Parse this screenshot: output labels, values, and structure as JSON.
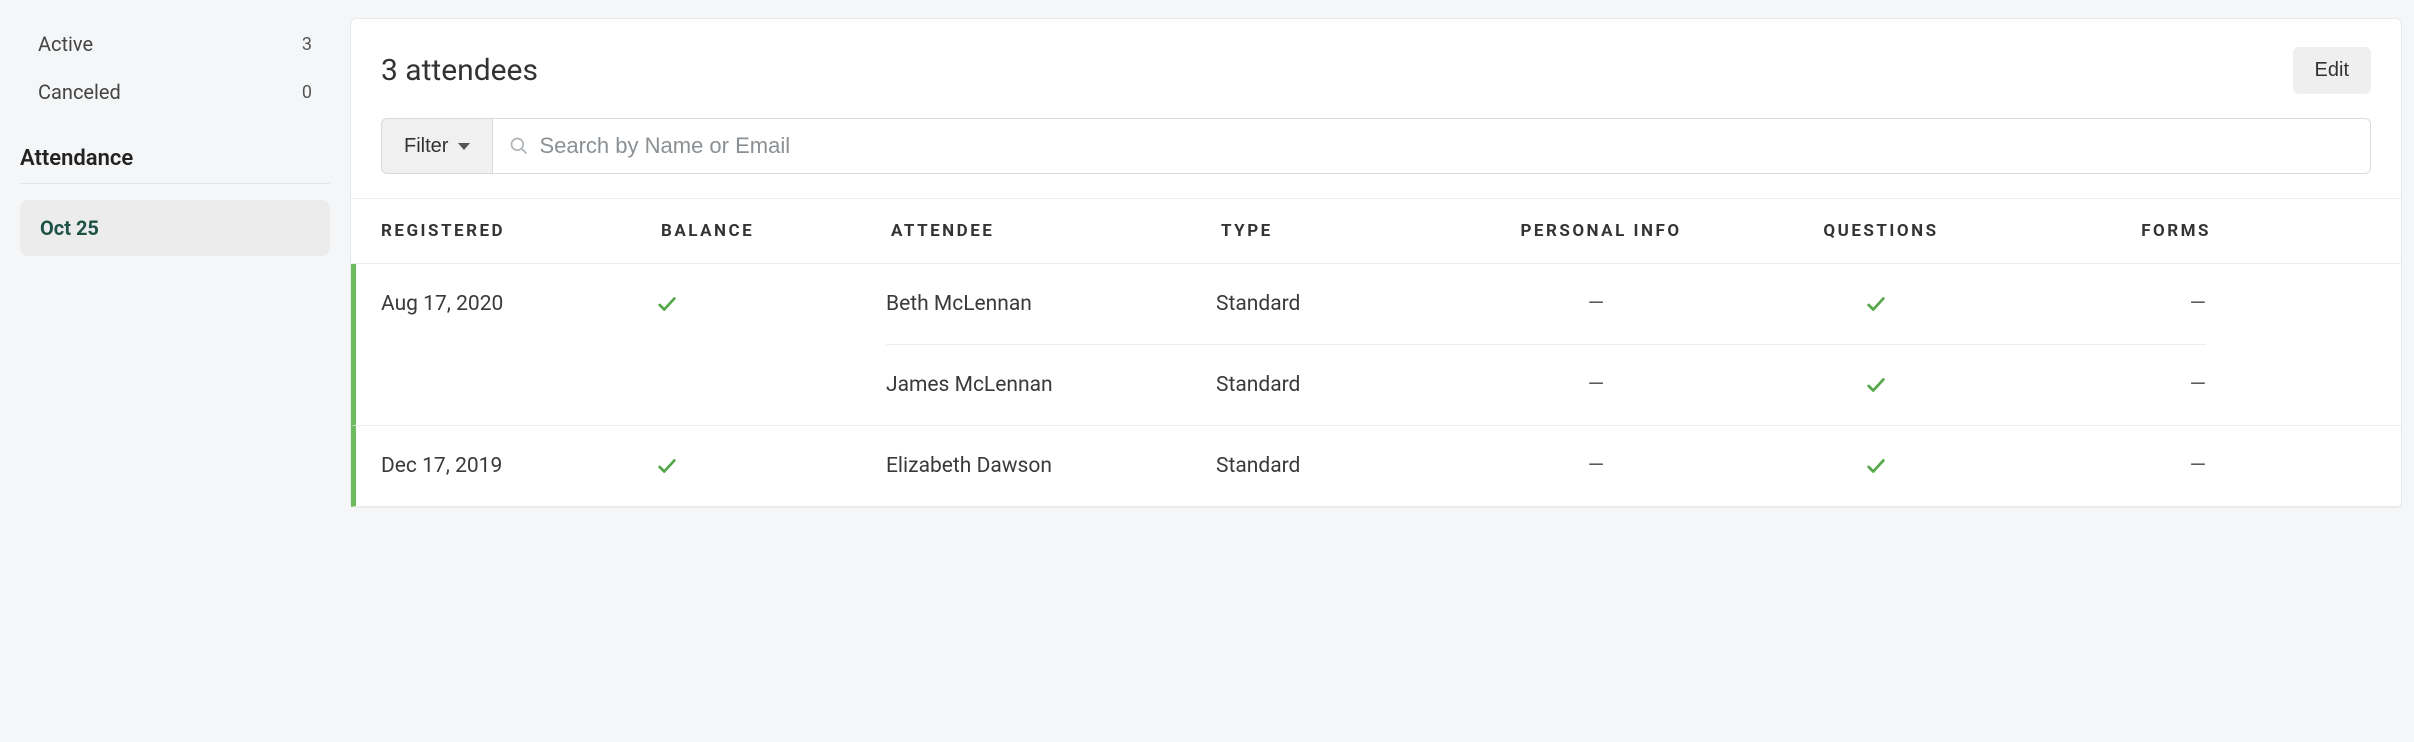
{
  "sidebar": {
    "statuses": [
      {
        "label": "Active",
        "count": "3"
      },
      {
        "label": "Canceled",
        "count": "0"
      }
    ],
    "attendance_label": "Attendance",
    "dates": [
      {
        "label": "Oct 25"
      }
    ]
  },
  "header": {
    "title": "3 attendees",
    "edit_label": "Edit"
  },
  "controls": {
    "filter_label": "Filter",
    "search_placeholder": "Search by Name or Email"
  },
  "table": {
    "columns": {
      "registered": "REGISTERED",
      "balance": "BALANCE",
      "attendee": "ATTENDEE",
      "type": "TYPE",
      "personal_info": "PERSONAL INFO",
      "questions": "QUESTIONS",
      "forms": "FORMS"
    },
    "groups": [
      {
        "registered": "Aug 17, 2020",
        "balance": "check",
        "attendees": [
          {
            "name": "Beth McLennan",
            "type": "Standard",
            "personal_info": "dash",
            "questions": "check",
            "forms": "dash"
          },
          {
            "name": "James McLennan",
            "type": "Standard",
            "personal_info": "dash",
            "questions": "check",
            "forms": "dash"
          }
        ]
      },
      {
        "registered": "Dec 17, 2019",
        "balance": "check",
        "attendees": [
          {
            "name": "Elizabeth Dawson",
            "type": "Standard",
            "personal_info": "dash",
            "questions": "check",
            "forms": "dash"
          }
        ]
      }
    ]
  },
  "colors": {
    "page_bg": "#f5f6f7",
    "panel_bg": "#ffffff",
    "border": "#e7e9ea",
    "accent_green": "#6ebb5f",
    "check_green": "#55a84a",
    "selected_date_text": "#1e5246",
    "selected_date_bg": "#ececec"
  },
  "glyphs": {
    "dash": "—"
  }
}
